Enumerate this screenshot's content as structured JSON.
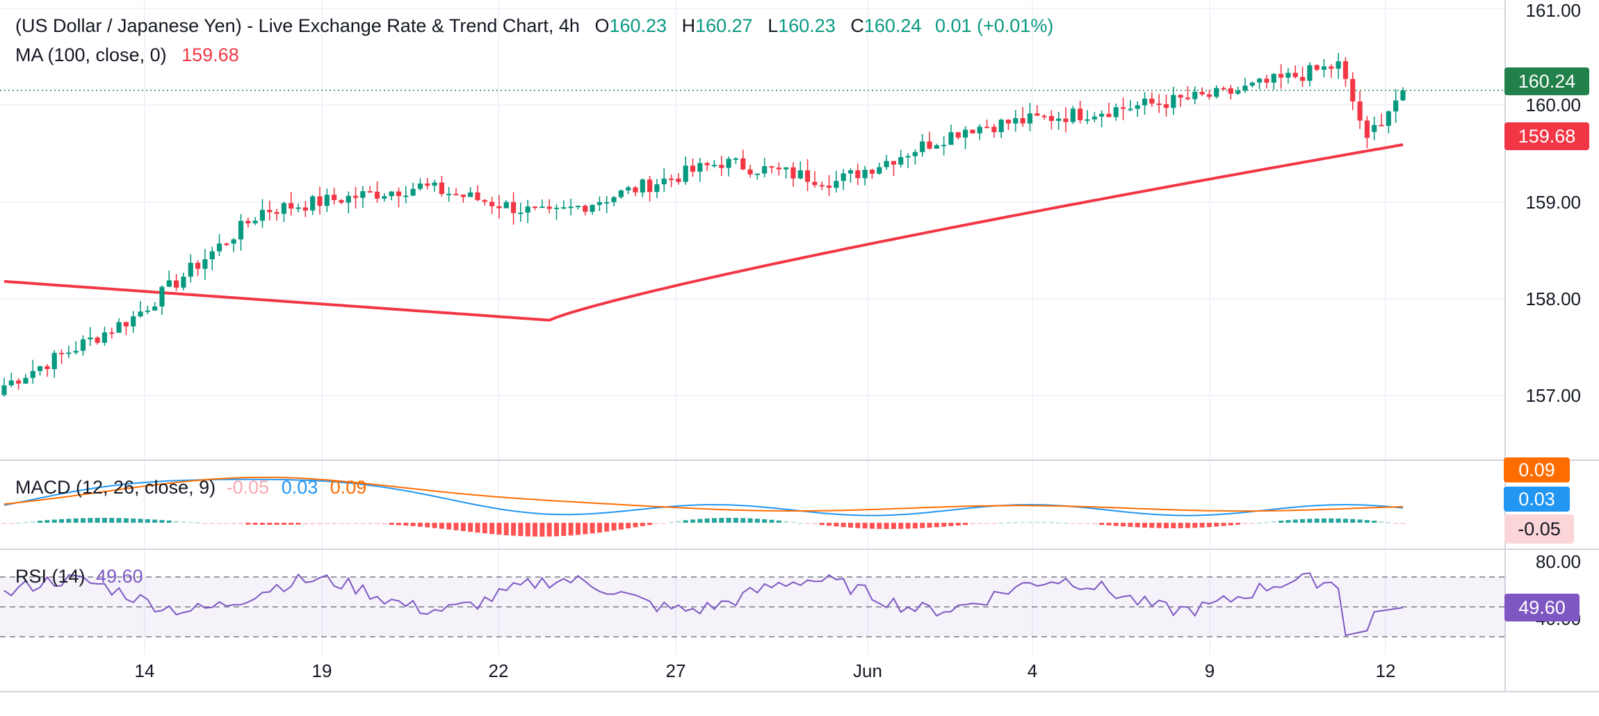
{
  "header": {
    "title": "(US Dollar / Japanese Yen) - Live Exchange Rate & Trend Chart, 4h",
    "o_label": "O",
    "o_value": "160.23",
    "h_label": "H",
    "h_value": "160.27",
    "l_label": "L",
    "l_value": "160.23",
    "c_label": "C",
    "c_value": "160.24",
    "change": "0.01 (+0.01%)",
    "ma_label": "MA (100, close, 0)",
    "ma_value": "159.68"
  },
  "macd_legend": {
    "label": "MACD (12, 26, close, 9)",
    "hist": "-0.05",
    "macd": "0.03",
    "signal": "0.09"
  },
  "rsi_legend": {
    "label": "RSI (14)",
    "value": "49.60"
  },
  "price_axis": [
    "161.00",
    "160.00",
    "159.00",
    "158.00",
    "157.00"
  ],
  "price_tags": {
    "last": "160.24",
    "ma": "159.68"
  },
  "macd_axis_tags": {
    "signal": "0.09",
    "macd": "0.03",
    "hist": "-0.05"
  },
  "rsi_axis": {
    "upper": "80.00",
    "lower": "40.00",
    "tag": "49.60"
  },
  "date_labels": [
    "14",
    "19",
    "22",
    "27",
    "Jun",
    "4",
    "9",
    "12"
  ],
  "colors": {
    "up": "#089981",
    "down": "#f23645",
    "ma": "#f23645",
    "macd": "#2196f3",
    "signal": "#ff6d00",
    "rsi": "#7e57c2",
    "price_tag": "#22804a"
  },
  "chart_data": {
    "type": "candlestick",
    "title": "(US Dollar / Japanese Yen) - Live Exchange Rate & Trend Chart, 4h",
    "ylim": [
      156.4,
      161.0
    ],
    "key_points": [
      {
        "index": 0,
        "close": 157.2
      },
      {
        "index": 18,
        "close": 157.9
      },
      {
        "index": 36,
        "close": 159.0
      },
      {
        "index": 58,
        "close": 159.25
      },
      {
        "index": 76,
        "close": 158.95
      },
      {
        "index": 100,
        "close": 159.5
      },
      {
        "index": 116,
        "close": 159.3
      },
      {
        "index": 134,
        "close": 159.85
      },
      {
        "index": 150,
        "close": 160.0
      },
      {
        "index": 170,
        "close": 160.2
      },
      {
        "index": 186,
        "close": 160.5
      },
      {
        "index": 190,
        "close": 159.75
      },
      {
        "index": 195,
        "close": 160.24
      }
    ],
    "ma100": {
      "name": "MA (100, close, 0)",
      "last": 159.68
    },
    "macd": {
      "macd": 0.03,
      "signal": 0.09,
      "histogram": -0.05
    },
    "rsi": {
      "period": 14,
      "last": 49.6,
      "levels": [
        70,
        50,
        30
      ]
    }
  }
}
